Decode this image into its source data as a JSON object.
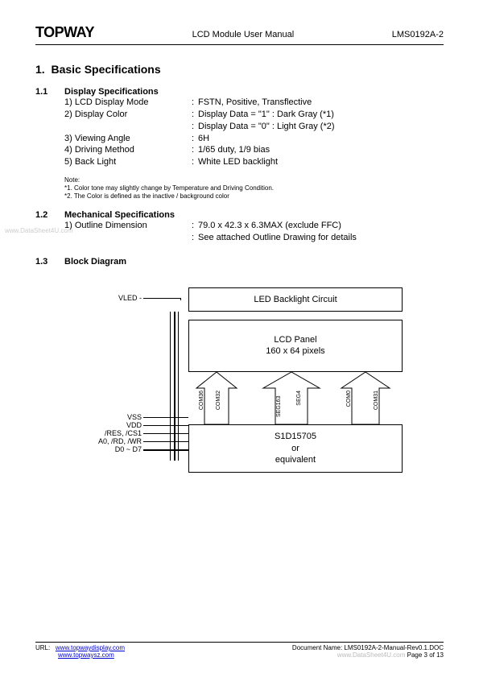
{
  "header": {
    "logo": "TOPWAY",
    "title": "LCD Module User Manual",
    "doc_id": "LMS0192A-2"
  },
  "section1": {
    "num": "1.",
    "title": "Basic Specifications"
  },
  "sec11": {
    "num": "1.1",
    "title": "Display Specifications",
    "rows": [
      {
        "label": "1) LCD Display Mode",
        "value": "FSTN, Positive, Transflective"
      },
      {
        "label": "2) Display Color",
        "value": "Display Data = \"1\" : Dark Gray (*1)"
      },
      {
        "label": "",
        "value": "Display Data = \"0\" : Light Gray (*2)"
      },
      {
        "label": "3) Viewing Angle",
        "value": "6H"
      },
      {
        "label": "4) Driving Method",
        "value": "1/65 duty, 1/9 bias"
      },
      {
        "label": "5) Back Light",
        "value": "White LED backlight"
      }
    ],
    "note_heading": "Note:",
    "note1": "*1. Color tone may slightly change by Temperature and Driving Condition.",
    "note2": "*2. The Color is defined as the inactive / background color"
  },
  "sec12": {
    "num": "1.2",
    "title": "Mechanical Specifications",
    "rows": [
      {
        "label": "1) Outline Dimension",
        "value": "79.0 x 42.3 x 6.3MAX (exclude FFC)"
      },
      {
        "label": "",
        "value": "See attached Outline Drawing for details"
      }
    ]
  },
  "sec13": {
    "num": "1.3",
    "title": "Block Diagram"
  },
  "diagram": {
    "vled_label": "VLED -",
    "box_led": "LED Backlight Circuit",
    "box_lcd_l1": "LCD Panel",
    "box_lcd_l2": "160 x 64 pixels",
    "box_chip_l1": "S1D15705",
    "box_chip_l2": "or",
    "box_chip_l3": "equivalent",
    "vlabels": [
      "COM36",
      "COM32",
      "SEG163",
      "SEG4",
      "COM0",
      "COM31"
    ],
    "side_labels": {
      "vss": "VSS",
      "vdd": "VDD",
      "res": "/RES, /CS1",
      "a0": "A0, /RD, /WR",
      "d0": "D0 ~ D7"
    },
    "stroke_color": "#000000"
  },
  "footer": {
    "url_prefix": "URL:",
    "url1": "www.topwaydisplay.com",
    "url2": "www.topwaysz.com",
    "docname": "Document Name: LMS0192A-2-Manual-Rev0.1.DOC",
    "page": "Page 3 of 13"
  },
  "watermarks": {
    "left": "www.DataSheet4U.com",
    "right": "www.DataSheet4U.com"
  },
  "colors": {
    "link": "#0000cc"
  }
}
